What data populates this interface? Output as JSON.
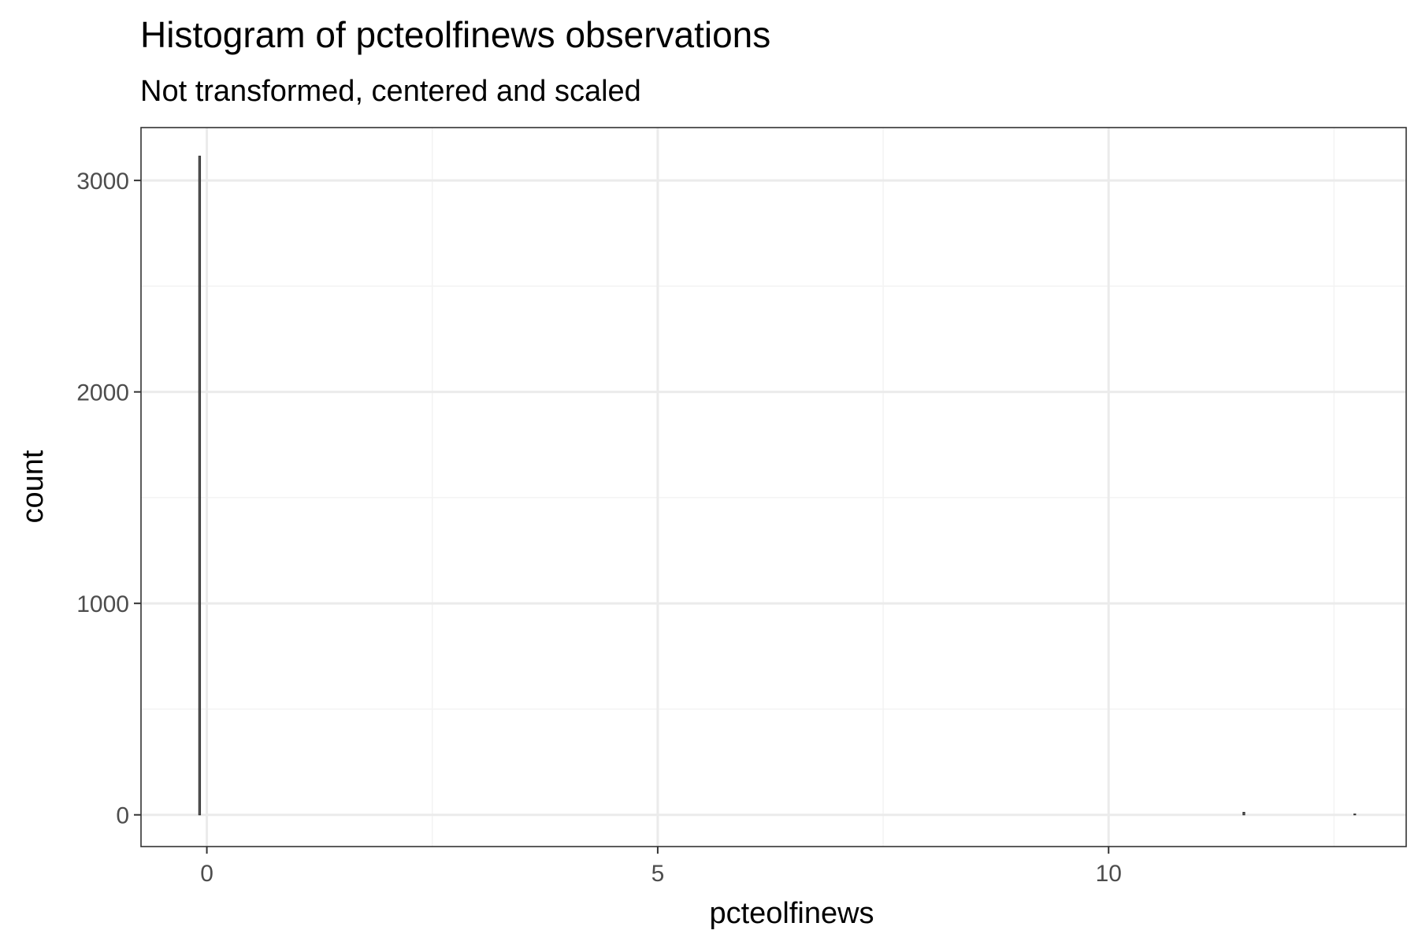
{
  "chart_data": {
    "type": "bar",
    "title": "Histogram of pcteolfinews observations",
    "subtitle": "Not transformed, centered and scaled",
    "xlabel": "pcteolfinews",
    "ylabel": "count",
    "xlim": [
      -0.73,
      13.3
    ],
    "ylim": [
      -150,
      3250
    ],
    "x_ticks": [
      0,
      5,
      10
    ],
    "x_tick_labels": [
      "0",
      "5",
      "10"
    ],
    "x_minor_ticks": [
      2.5,
      7.5,
      12.5
    ],
    "y_ticks": [
      0,
      1000,
      2000,
      3000
    ],
    "y_tick_labels": [
      "0",
      "1000",
      "2000",
      "3000"
    ],
    "y_minor_ticks": [
      500,
      1500,
      2500
    ],
    "grid": true,
    "bin_width": 0.02,
    "bins": [
      {
        "x": -0.08,
        "count": 3115
      },
      {
        "x": 11.5,
        "count": 12
      },
      {
        "x": 12.73,
        "count": 4
      }
    ],
    "colors": {
      "panel_border": "#333333",
      "grid_major": "#ebebeb",
      "grid_minor": "#f3f3f3",
      "bar_fill": "#595959",
      "bar_outline": "#333333"
    }
  }
}
